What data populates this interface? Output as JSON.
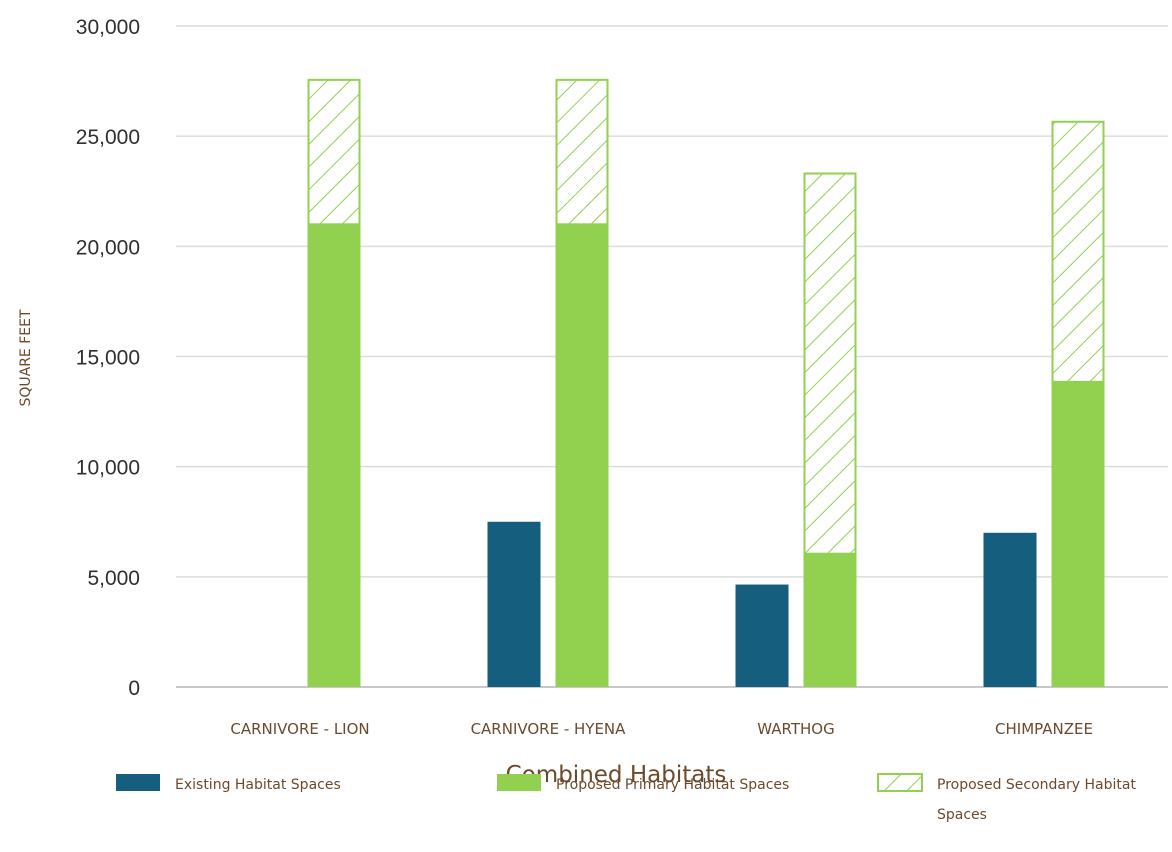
{
  "chart_data": {
    "type": "bar",
    "stacked_groups": true,
    "categories": [
      "CARNIVORE - LION",
      "CARNIVORE - HYENA",
      "WARTHOG",
      "CHIMPANZEE"
    ],
    "series": [
      {
        "name": "Existing Habitat Spaces",
        "values": [
          0,
          7500,
          4650,
          7000
        ],
        "color": "#165e7e",
        "stack": "existing"
      },
      {
        "name": "Proposed Primary Habitat Spaces",
        "values": [
          21000,
          21000,
          6050,
          13850
        ],
        "color": "#92d050",
        "stack": "proposed"
      },
      {
        "name": "Proposed Secondary Habitat Spaces",
        "values": [
          6600,
          6600,
          17300,
          11850
        ],
        "color": "#92d050",
        "pattern": "diagonal-hatch",
        "stack": "proposed"
      }
    ],
    "ylim": [
      0,
      30000
    ],
    "yticks": [
      "0",
      "5,000",
      "10,000",
      "15,000",
      "20,000",
      "25,000",
      "30,000"
    ],
    "ylabel": "SQUARE FEET",
    "xlabel": "Combined Habitats",
    "grid": true,
    "legend_position": "bottom",
    "legend": {
      "existing": "Existing Habitat Spaces",
      "primary": "Proposed Primary Habitat Spaces",
      "secondary_line1": "Proposed Secondary Habitat",
      "secondary_line2": "Spaces"
    }
  }
}
